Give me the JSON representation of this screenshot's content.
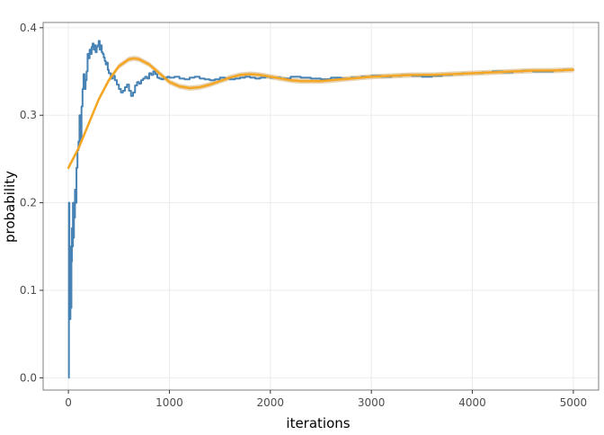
{
  "chart_data": {
    "type": "line",
    "xlabel": "iterations",
    "ylabel": "probability",
    "xlim": [
      -250,
      5250
    ],
    "ylim": [
      -0.014,
      0.406
    ],
    "x_ticks": [
      0,
      1000,
      2000,
      3000,
      4000,
      5000
    ],
    "y_ticks": [
      0.0,
      0.1,
      0.2,
      0.3,
      0.4
    ],
    "x_tick_labels": [
      "0",
      "1000",
      "2000",
      "3000",
      "4000",
      "5000"
    ],
    "y_tick_labels": [
      "0.0",
      "0.1",
      "0.2",
      "0.3",
      "0.4"
    ],
    "grid": true,
    "legend": "none",
    "colors": {
      "running_mean": "#4682b4",
      "smooth": "#f5a623",
      "band": "#c9a05a",
      "grid": "#ebebeb",
      "border": "#7f7f7f"
    },
    "series": [
      {
        "role": "running_mean",
        "style": "step",
        "x": [
          1,
          5,
          10,
          15,
          20,
          25,
          30,
          35,
          40,
          45,
          50,
          55,
          60,
          65,
          70,
          80,
          90,
          100,
          110,
          120,
          130,
          140,
          150,
          160,
          170,
          180,
          190,
          200,
          210,
          220,
          230,
          240,
          250,
          260,
          270,
          280,
          290,
          300,
          310,
          320,
          330,
          340,
          350,
          360,
          370,
          380,
          390,
          400,
          420,
          440,
          460,
          480,
          500,
          520,
          540,
          560,
          580,
          600,
          620,
          640,
          660,
          680,
          700,
          720,
          740,
          760,
          780,
          800,
          820,
          840,
          860,
          880,
          900,
          920,
          940,
          960,
          980,
          1000,
          1050,
          1100,
          1150,
          1200,
          1250,
          1300,
          1350,
          1400,
          1450,
          1500,
          1550,
          1600,
          1650,
          1700,
          1750,
          1800,
          1850,
          1900,
          1950,
          2000,
          2100,
          2200,
          2300,
          2400,
          2500,
          2600,
          2700,
          2800,
          2900,
          3000,
          3100,
          3200,
          3300,
          3400,
          3500,
          3600,
          3700,
          3800,
          3900,
          4000,
          4100,
          4200,
          4300,
          4400,
          4500,
          4600,
          4700,
          4800,
          4900,
          5000
        ],
        "y": [
          0.0,
          0.2,
          0.1,
          0.067,
          0.15,
          0.08,
          0.133,
          0.171,
          0.15,
          0.2,
          0.16,
          0.2,
          0.183,
          0.215,
          0.2,
          0.24,
          0.26,
          0.27,
          0.3,
          0.27,
          0.31,
          0.33,
          0.347,
          0.33,
          0.34,
          0.35,
          0.37,
          0.365,
          0.375,
          0.37,
          0.378,
          0.382,
          0.375,
          0.38,
          0.372,
          0.378,
          0.38,
          0.385,
          0.375,
          0.38,
          0.372,
          0.37,
          0.366,
          0.362,
          0.358,
          0.36,
          0.352,
          0.348,
          0.342,
          0.345,
          0.34,
          0.335,
          0.33,
          0.326,
          0.328,
          0.332,
          0.335,
          0.328,
          0.322,
          0.326,
          0.334,
          0.338,
          0.336,
          0.34,
          0.342,
          0.344,
          0.342,
          0.348,
          0.346,
          0.35,
          0.347,
          0.343,
          0.342,
          0.341,
          0.342,
          0.343,
          0.344,
          0.343,
          0.344,
          0.342,
          0.341,
          0.343,
          0.344,
          0.342,
          0.341,
          0.34,
          0.341,
          0.343,
          0.342,
          0.341,
          0.342,
          0.343,
          0.344,
          0.343,
          0.342,
          0.343,
          0.344,
          0.343,
          0.342,
          0.344,
          0.343,
          0.342,
          0.341,
          0.343,
          0.342,
          0.343,
          0.344,
          0.345,
          0.344,
          0.345,
          0.346,
          0.345,
          0.344,
          0.345,
          0.346,
          0.347,
          0.348,
          0.348,
          0.349,
          0.35,
          0.349,
          0.35,
          0.351,
          0.35,
          0.35,
          0.351,
          0.352,
          0.351
        ]
      },
      {
        "role": "smooth",
        "style": "curve",
        "x": [
          0,
          100,
          200,
          300,
          400,
          500,
          600,
          650,
          700,
          800,
          900,
          1000,
          1100,
          1200,
          1300,
          1400,
          1500,
          1600,
          1700,
          1800,
          1900,
          2000,
          2100,
          2200,
          2300,
          2400,
          2500,
          2600,
          2700,
          2800,
          2900,
          3000,
          3200,
          3400,
          3600,
          3800,
          4000,
          4200,
          4400,
          4600,
          4800,
          5000
        ],
        "y": [
          0.24,
          0.262,
          0.29,
          0.318,
          0.34,
          0.356,
          0.364,
          0.365,
          0.364,
          0.358,
          0.348,
          0.338,
          0.333,
          0.331,
          0.332,
          0.335,
          0.339,
          0.343,
          0.346,
          0.347,
          0.346,
          0.344,
          0.342,
          0.34,
          0.339,
          0.339,
          0.339,
          0.34,
          0.341,
          0.342,
          0.343,
          0.344,
          0.345,
          0.346,
          0.346,
          0.347,
          0.348,
          0.349,
          0.35,
          0.351,
          0.351,
          0.352
        ],
        "band": 0.003
      }
    ]
  }
}
